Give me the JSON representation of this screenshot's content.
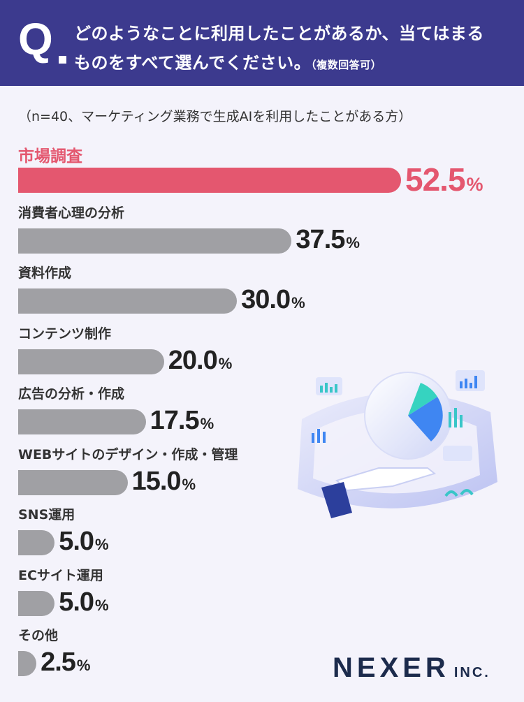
{
  "header": {
    "q_mark": "Q",
    "line1": "どのようなことに利用したことがあるか、当てはまる",
    "line2": "ものをすべて選んでください。",
    "note": "（複数回答可）"
  },
  "chart_data": {
    "type": "bar",
    "orientation": "horizontal",
    "title": "",
    "subtitle": "（n=40、マーケティング業務で生成AIを利用したことがある方）",
    "unit": "%",
    "categories": [
      "市場調査",
      "消費者心理の分析",
      "資料作成",
      "コンテンツ制作",
      "広告の分析・作成",
      "WEBサイトのデザイン・作成・管理",
      "SNS運用",
      "ECサイト運用",
      "その他"
    ],
    "values": [
      52.5,
      37.5,
      30.0,
      20.0,
      17.5,
      15.0,
      5.0,
      5.0,
      2.5
    ],
    "value_labels": [
      "52.5",
      "37.5",
      "30.0",
      "20.0",
      "17.5",
      "15.0",
      "5.0",
      "5.0",
      "2.5"
    ],
    "highlight_index": 0,
    "colors": {
      "highlight": "#e4576f",
      "default": "#a0a0a4"
    },
    "grid": false,
    "legend": "none"
  },
  "logo": {
    "main": "NEXER",
    "sub": "INC."
  }
}
